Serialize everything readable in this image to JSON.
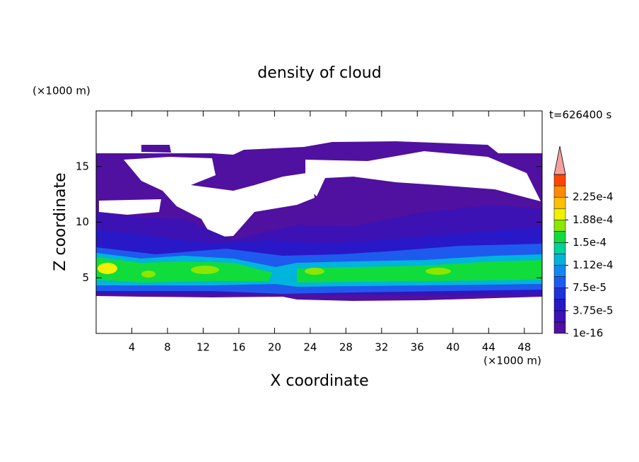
{
  "chart_data": {
    "type": "contour",
    "title": "density of cloud",
    "xlabel": "X coordinate",
    "ylabel": "Z coordinate",
    "x_unit": "(×1000 m)",
    "y_unit": "(×1000 m)",
    "annotation": "t=626400 s",
    "xlim": [
      0,
      50
    ],
    "xticks": [
      4,
      8,
      12,
      16,
      20,
      24,
      28,
      32,
      36,
      40,
      44,
      48
    ],
    "ylim": [
      0,
      20
    ],
    "yticks": [
      5,
      10,
      15
    ],
    "colorbar": {
      "clim": [
        0,
        0.0002625
      ],
      "colors": [
        "#5010a0",
        "#3c12b4",
        "#2818c8",
        "#1e32dc",
        "#1e5aee",
        "#1488f0",
        "#00b4dc",
        "#00d29a",
        "#10dc3c",
        "#8ce600",
        "#f0f000",
        "#ffc000",
        "#ff8c00",
        "#ff4600"
      ],
      "extend_color": "#f4a0a0",
      "ticks": [
        {
          "value": 1e-16,
          "label": "1e-16"
        },
        {
          "value": 3.75e-05,
          "label": "3.75e-5"
        },
        {
          "value": 7.5e-05,
          "label": "7.5e-5"
        },
        {
          "value": 0.0001125,
          "label": "1.12e-4"
        },
        {
          "value": 0.00015,
          "label": "1.5e-4"
        },
        {
          "value": 0.0001875,
          "label": "1.88e-4"
        },
        {
          "value": 0.000225,
          "label": "2.25e-4"
        }
      ]
    }
  }
}
